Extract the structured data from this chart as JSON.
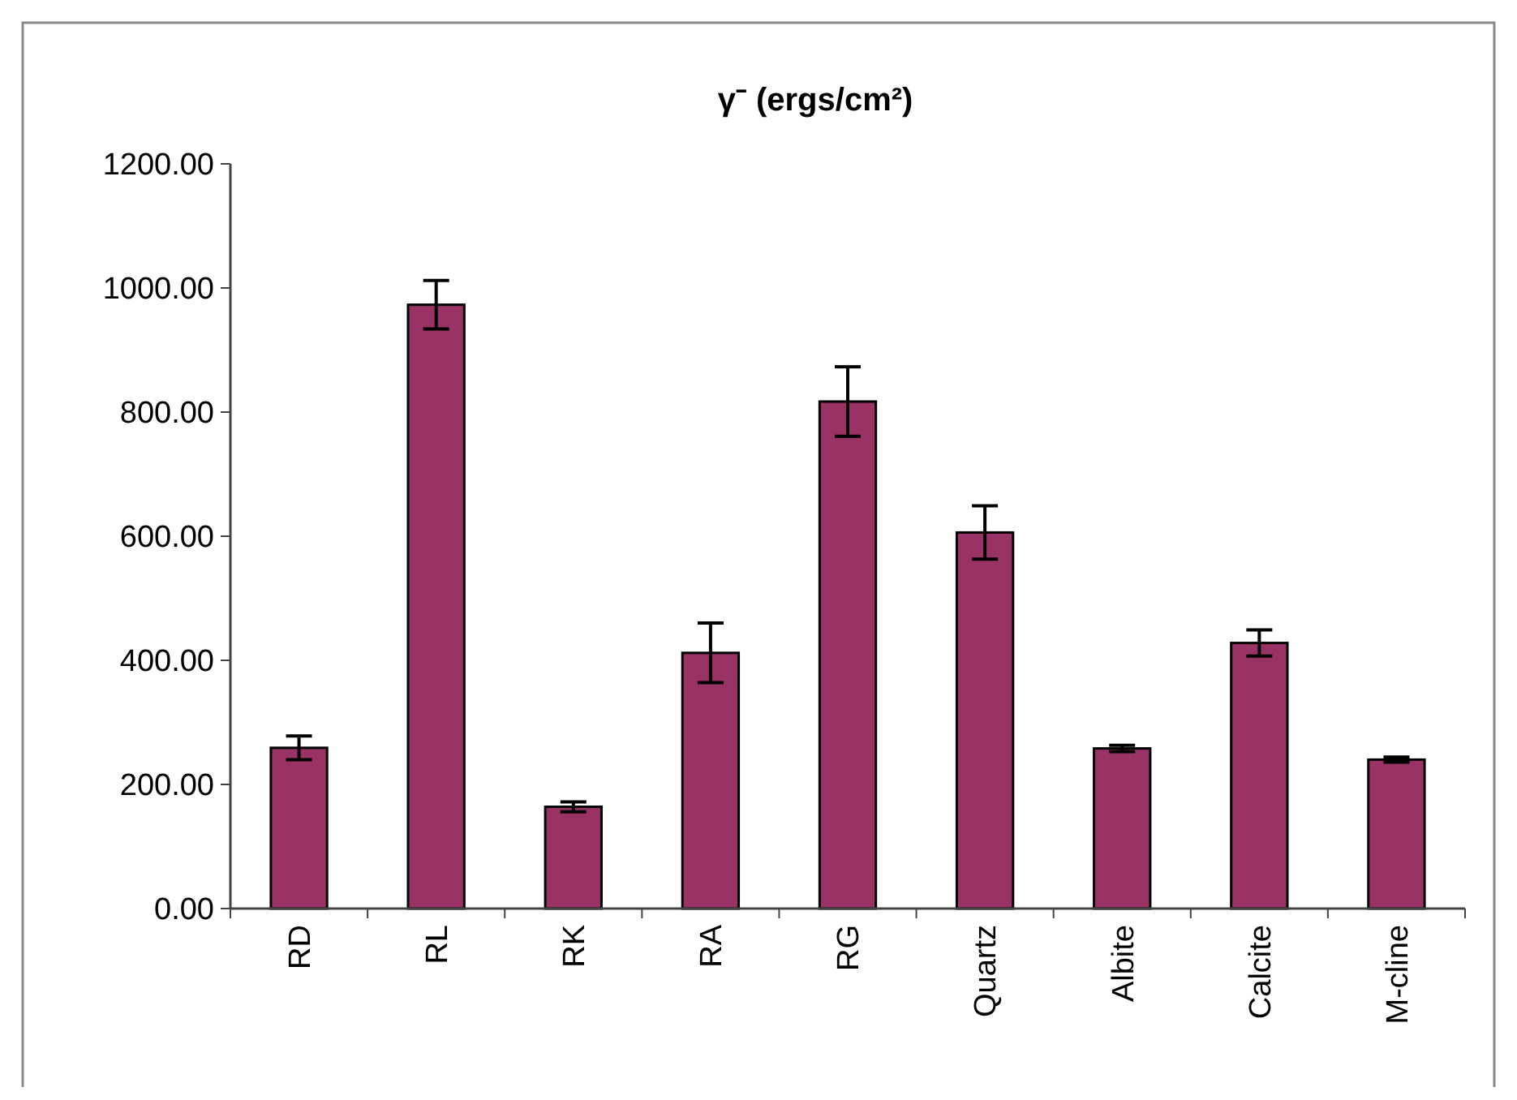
{
  "chart_data": {
    "type": "bar",
    "title": "γ⁻ (ergs/cm²)",
    "categories": [
      "RD",
      "RL",
      "RK",
      "RA",
      "RG",
      "Quartz",
      "Albite",
      "Calcite",
      "M-cline"
    ],
    "values": [
      259,
      973,
      164,
      412,
      817,
      606,
      258,
      428,
      240
    ],
    "errors": [
      19,
      39,
      8,
      48,
      56,
      43,
      5,
      21,
      4
    ],
    "color": "#993366",
    "ylim": [
      0,
      1200
    ],
    "yticks": [
      {
        "value": 0,
        "label": "0.00"
      },
      {
        "value": 200,
        "label": "200.00"
      },
      {
        "value": 400,
        "label": "400.00"
      },
      {
        "value": 600,
        "label": "600.00"
      },
      {
        "value": 800,
        "label": "800.00"
      },
      {
        "value": 1000,
        "label": "1000.00"
      },
      {
        "value": 1200,
        "label": "1200.00"
      }
    ],
    "grid": false
  }
}
